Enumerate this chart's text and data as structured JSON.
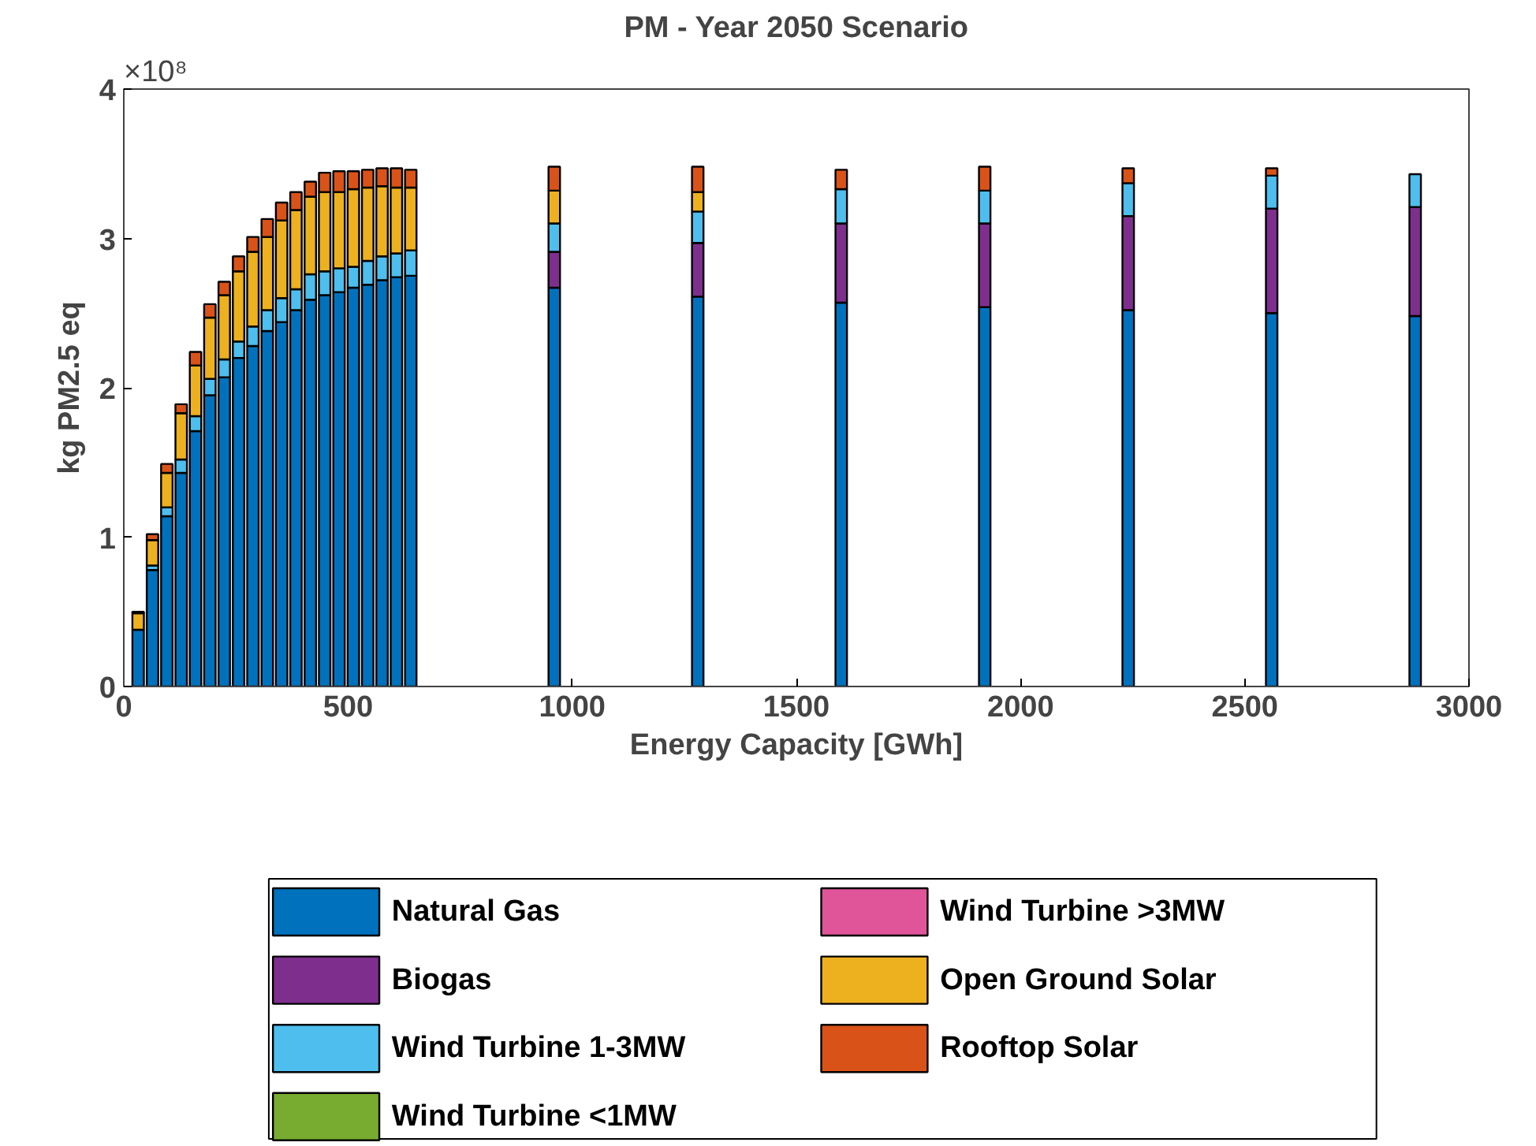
{
  "chart_data": {
    "type": "bar",
    "stacked": true,
    "title": "PM - Year 2050 Scenario",
    "xlabel": "Energy Capacity [GWh]",
    "ylabel": "kg PM2.5 eq",
    "annotations": [
      "×10⁸"
    ],
    "x": [
      32,
      64,
      96,
      128,
      160,
      192,
      224,
      256,
      288,
      320,
      352,
      384,
      416,
      448,
      480,
      512,
      544,
      576,
      608,
      640,
      960,
      1280,
      1600,
      1920,
      2240,
      2560,
      2880
    ],
    "series": [
      {
        "name": "Natural Gas",
        "color": "#0072bd",
        "values": [
          0.38,
          0.78,
          1.14,
          1.43,
          1.71,
          1.95,
          2.07,
          2.2,
          2.28,
          2.38,
          2.44,
          2.52,
          2.59,
          2.62,
          2.64,
          2.67,
          2.69,
          2.72,
          2.74,
          2.75,
          2.67,
          2.61,
          2.57,
          2.54,
          2.52,
          2.5,
          2.48
        ]
      },
      {
        "name": "Biogas",
        "color": "#7e2f8e",
        "values": [
          0,
          0,
          0,
          0,
          0,
          0,
          0,
          0,
          0,
          0,
          0,
          0,
          0,
          0,
          0,
          0,
          0,
          0,
          0,
          0,
          0.24,
          0.36,
          0.53,
          0.56,
          0.63,
          0.7,
          0.73
        ]
      },
      {
        "name": "Wind Turbine 1-3MW",
        "color": "#4dbeee",
        "values": [
          0,
          0.03,
          0.06,
          0.09,
          0.1,
          0.11,
          0.12,
          0.11,
          0.13,
          0.14,
          0.16,
          0.14,
          0.17,
          0.16,
          0.16,
          0.14,
          0.16,
          0.16,
          0.16,
          0.17,
          0.19,
          0.21,
          0.23,
          0.22,
          0.22,
          0.22,
          0.22
        ]
      },
      {
        "name": "Wind Turbine <1MW",
        "color": "#77ac30",
        "values": [
          0,
          0,
          0,
          0,
          0,
          0,
          0,
          0,
          0,
          0,
          0,
          0,
          0,
          0,
          0,
          0,
          0,
          0,
          0,
          0,
          0,
          0,
          0,
          0,
          0,
          0,
          0
        ]
      },
      {
        "name": "Wind Turbine >3MW",
        "color": "#e0559a",
        "values": [
          0,
          0,
          0,
          0,
          0,
          0,
          0,
          0,
          0,
          0,
          0,
          0,
          0,
          0,
          0,
          0,
          0,
          0,
          0,
          0,
          0,
          0,
          0,
          0,
          0,
          0,
          0
        ]
      },
      {
        "name": "Open Ground Solar",
        "color": "#edb120",
        "values": [
          0.11,
          0.17,
          0.23,
          0.31,
          0.34,
          0.41,
          0.43,
          0.47,
          0.5,
          0.49,
          0.52,
          0.53,
          0.52,
          0.53,
          0.51,
          0.52,
          0.49,
          0.47,
          0.44,
          0.42,
          0.22,
          0.13,
          0,
          0,
          0,
          0,
          0
        ]
      },
      {
        "name": "Rooftop Solar",
        "color": "#d95319",
        "values": [
          0.01,
          0.04,
          0.06,
          0.06,
          0.09,
          0.09,
          0.09,
          0.1,
          0.1,
          0.12,
          0.12,
          0.12,
          0.1,
          0.13,
          0.14,
          0.12,
          0.12,
          0.12,
          0.13,
          0.12,
          0.16,
          0.17,
          0.13,
          0.16,
          0.1,
          0.05,
          0
        ]
      }
    ],
    "xlim": [
      0,
      3000
    ],
    "xticks": [
      0,
      500,
      1000,
      1500,
      2000,
      2500,
      3000
    ],
    "ylim": [
      0,
      4
    ],
    "yticks": [
      0,
      1,
      2,
      3,
      4
    ],
    "legend": "bottom"
  }
}
